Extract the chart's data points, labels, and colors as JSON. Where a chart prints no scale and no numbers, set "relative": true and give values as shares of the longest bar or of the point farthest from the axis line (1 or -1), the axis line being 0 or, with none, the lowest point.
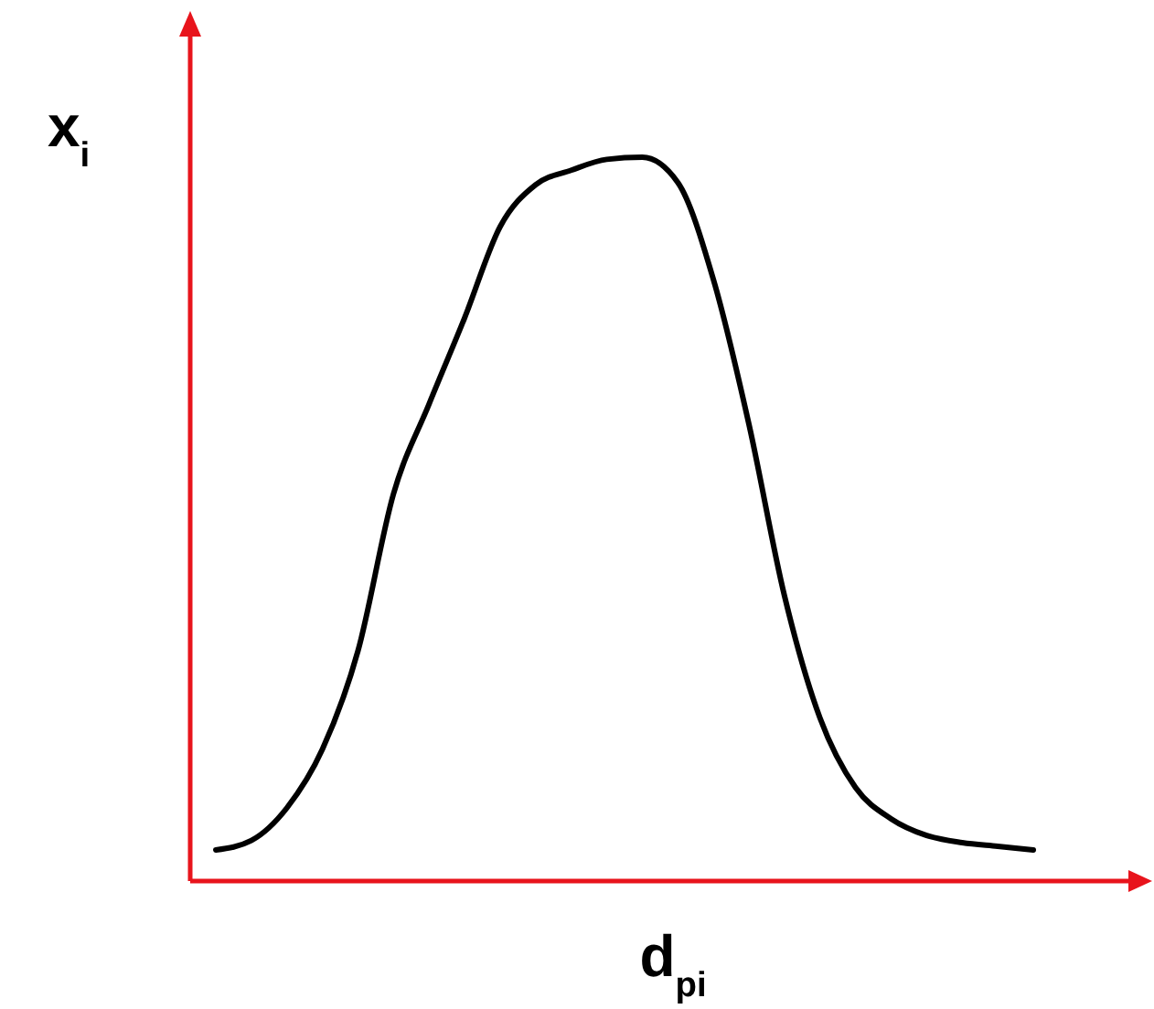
{
  "chart_data": {
    "type": "line",
    "relative": true,
    "xlabel": "d$_{pi}$",
    "ylabel": "x$_{i}$",
    "categories": [
      null,
      null,
      null,
      null,
      null,
      null,
      null,
      null,
      null,
      null,
      null,
      null,
      null,
      null,
      null,
      null,
      null,
      null,
      null,
      null,
      null,
      null,
      null,
      null
    ],
    "series": [
      {
        "color": "#000000",
        "values": [
          0.043,
          0.056,
          0.101,
          0.182,
          0.318,
          0.535,
          0.659,
          0.778,
          0.904,
          0.962,
          0.982,
          0.997,
          1,
          0.965,
          0.831,
          0.631,
          0.394,
          0.225,
          0.129,
          0.086,
          0.063,
          0.053,
          0.048,
          0.043
        ]
      }
    ],
    "marker": "none",
    "line_style": "solid"
  }
}
